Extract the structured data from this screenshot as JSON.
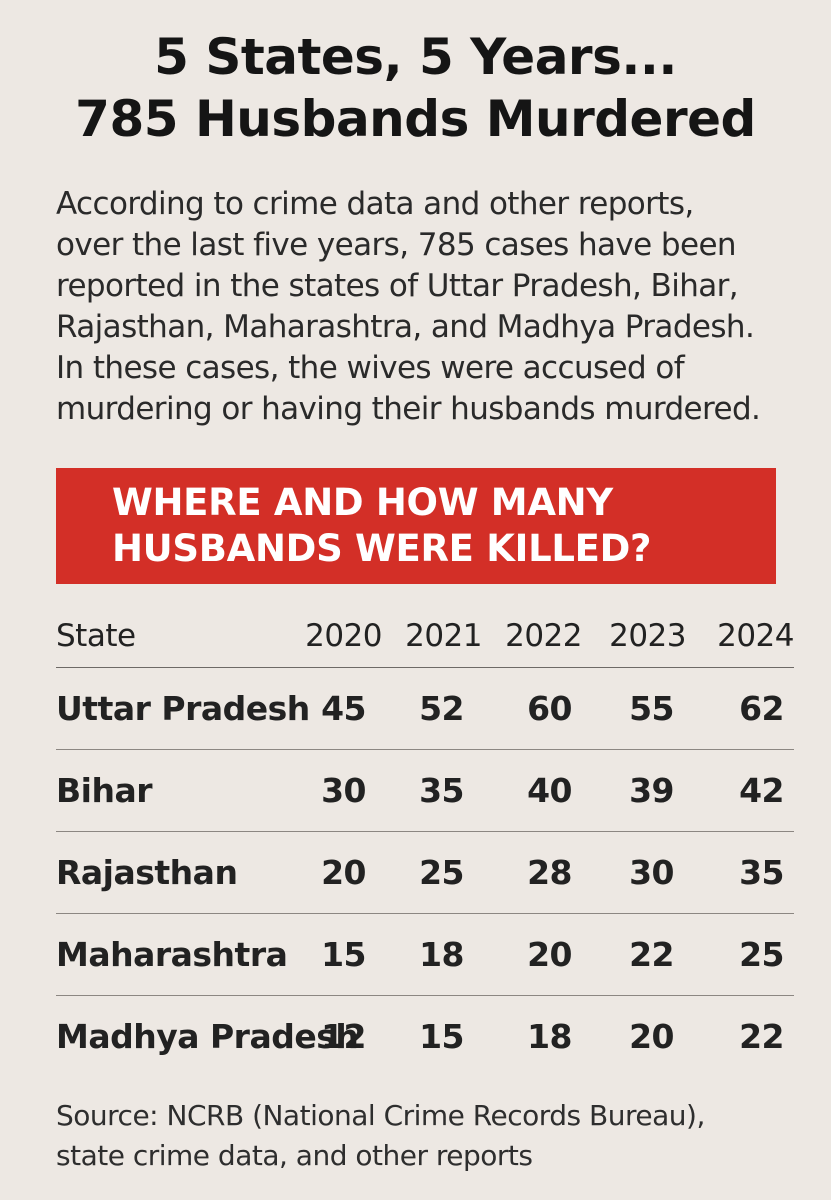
{
  "title": {
    "line1": "5 States, 5 Years...",
    "line2": "785 Husbands Murdered"
  },
  "intro": {
    "lines": [
      "According to crime data and other reports,",
      "over the last five years, 785 cases have been",
      "reported in the states of Uttar Pradesh, Bihar,",
      "Rajasthan, Maharashtra, and Madhya Pradesh.",
      "In these cases, the wives were accused of",
      "murdering or having their husbands murdered."
    ]
  },
  "banner": {
    "line1": "WHERE AND HOW MANY",
    "line2": "HUSBANDS WERE KILLED?",
    "color": "#d32f27"
  },
  "table": {
    "headers": [
      "State",
      "2020",
      "2021",
      "2022",
      "2023",
      "2024"
    ],
    "rows": [
      {
        "state": "Uttar Pradesh",
        "values": [
          "45",
          "52",
          "60",
          "55",
          "62"
        ]
      },
      {
        "state": "Bihar",
        "values": [
          "30",
          "35",
          "40",
          "39",
          "42"
        ]
      },
      {
        "state": "Rajasthan",
        "values": [
          "20",
          "25",
          "28",
          "30",
          "35"
        ]
      },
      {
        "state": "Maharashtra",
        "values": [
          "15",
          "18",
          "20",
          "22",
          "25"
        ]
      },
      {
        "state": "Madhya Pradesh",
        "values": [
          "12",
          "15",
          "18",
          "20",
          "22"
        ]
      }
    ]
  },
  "source": {
    "line1": "Source: NCRB (National Crime Records Bureau),",
    "line2": "state crime data, and other reports"
  }
}
